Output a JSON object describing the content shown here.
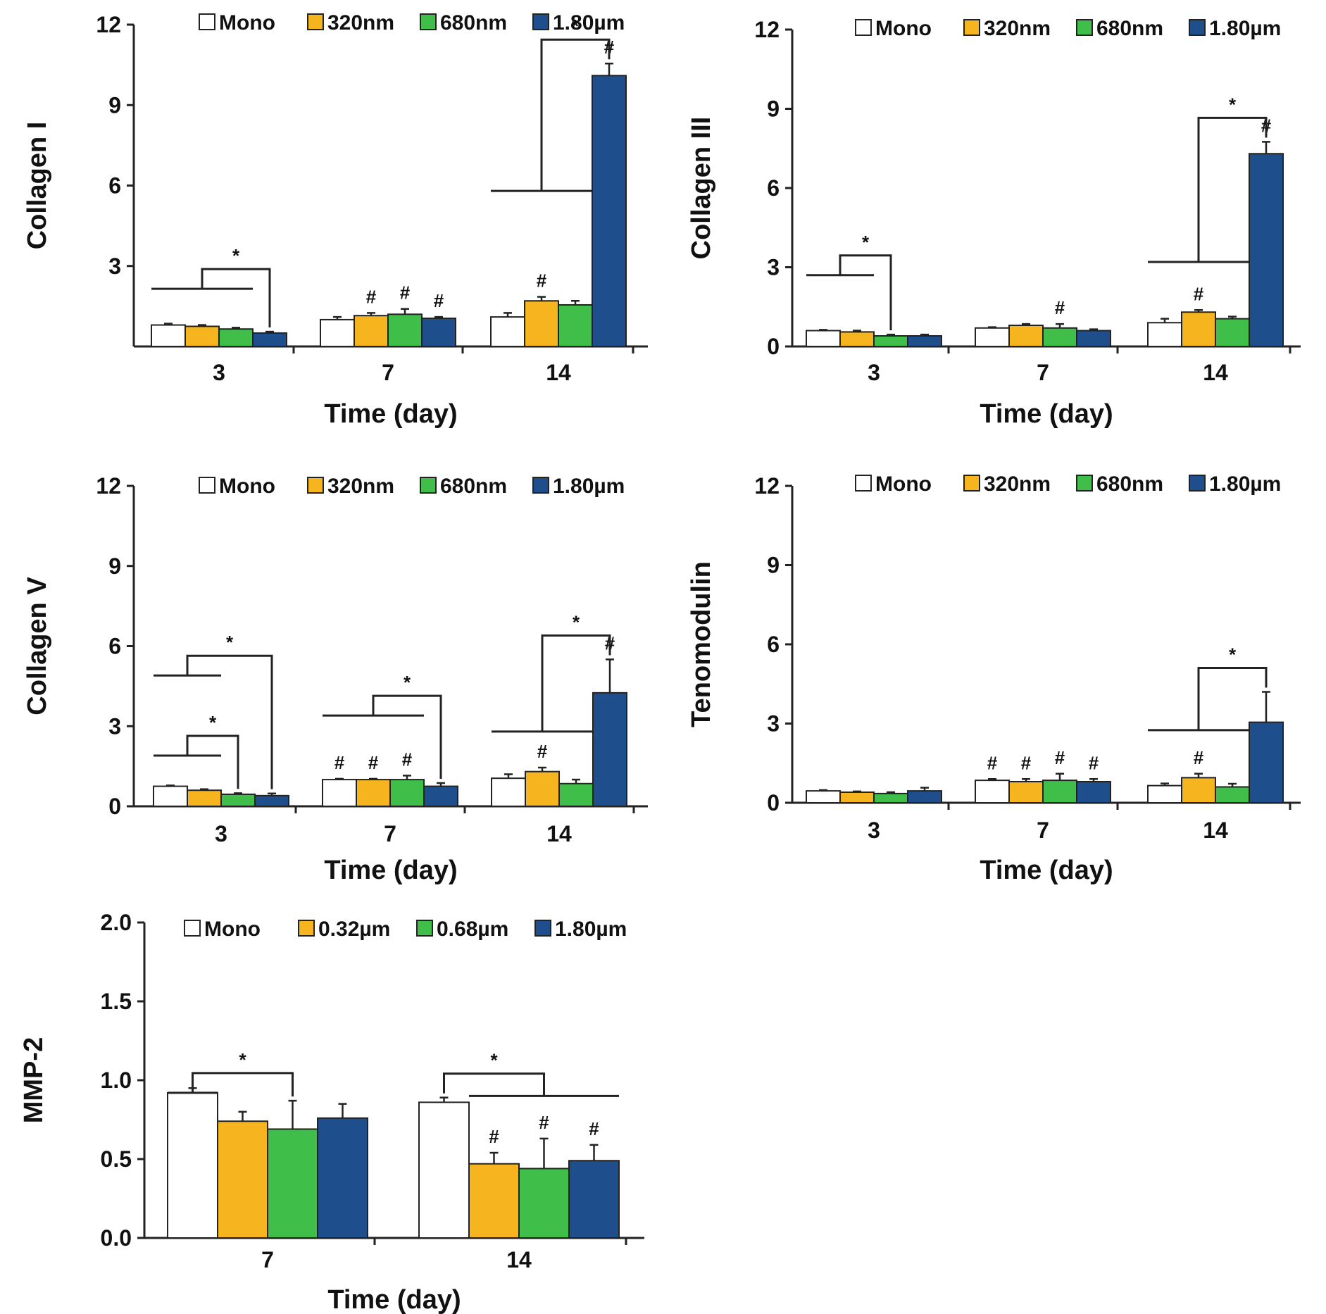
{
  "colors": {
    "Mono": "#ffffff",
    "Yellow": "#f6b51e",
    "Green": "#3fbf4a",
    "Blue": "#1f4e8c",
    "Axis": "#222222"
  },
  "chart_data": [
    {
      "id": "collagen-i",
      "type": "bar",
      "ylabel": "Collagen I",
      "xlabel": "Time (day)",
      "ylim": [
        0,
        12
      ],
      "yticks": [
        "3",
        "6",
        "9",
        "12"
      ],
      "categories": [
        "3",
        "7",
        "14"
      ],
      "series": [
        {
          "name": "Mono",
          "values": [
            0.8,
            1.0,
            1.1
          ],
          "errors": [
            0.05,
            0.1,
            0.15
          ]
        },
        {
          "name": "320nm",
          "values": [
            0.75,
            1.15,
            1.7
          ],
          "errors": [
            0.05,
            0.1,
            0.15
          ]
        },
        {
          "name": "680nm",
          "values": [
            0.65,
            1.2,
            1.55
          ],
          "errors": [
            0.05,
            0.2,
            0.15
          ]
        },
        {
          "name": "1.80µm",
          "values": [
            0.5,
            1.05,
            10.1
          ],
          "errors": [
            0.05,
            0.05,
            0.45
          ]
        }
      ],
      "hash_marks": [
        {
          "category": 1,
          "series": 1,
          "text": "#"
        },
        {
          "category": 1,
          "series": 2,
          "text": "#"
        },
        {
          "category": 1,
          "series": 3,
          "text": "#"
        },
        {
          "category": 2,
          "series": 1,
          "text": "#"
        },
        {
          "category": 2,
          "series": 3,
          "text": "#"
        }
      ],
      "significance": [
        {
          "category": 0,
          "from_series": 0,
          "to_series": 2,
          "target_series": 3,
          "level": 2.15,
          "text": "*"
        },
        {
          "category": 2,
          "from_series": 0,
          "to_series": 2,
          "target_series": 3,
          "level": 5.8,
          "text": "*"
        }
      ]
    },
    {
      "id": "collagen-iii",
      "type": "bar",
      "ylabel": "Collagen III",
      "xlabel": "Time (day)",
      "ylim": [
        0,
        12
      ],
      "yticks": [
        "0",
        "3",
        "6",
        "9",
        "12"
      ],
      "categories": [
        "3",
        "7",
        "14"
      ],
      "series": [
        {
          "name": "Mono",
          "values": [
            0.6,
            0.7,
            0.9
          ],
          "errors": [
            0.03,
            0.03,
            0.15
          ]
        },
        {
          "name": "320nm",
          "values": [
            0.55,
            0.8,
            1.3
          ],
          "errors": [
            0.05,
            0.05,
            0.08
          ]
        },
        {
          "name": "680nm",
          "values": [
            0.4,
            0.7,
            1.05
          ],
          "errors": [
            0.05,
            0.15,
            0.08
          ]
        },
        {
          "name": "1.80µm",
          "values": [
            0.4,
            0.6,
            7.3
          ],
          "errors": [
            0.05,
            0.05,
            0.45
          ]
        }
      ],
      "hash_marks": [
        {
          "category": 1,
          "series": 2,
          "text": "#"
        },
        {
          "category": 2,
          "series": 1,
          "text": "#"
        },
        {
          "category": 2,
          "series": 3,
          "text": "#"
        }
      ],
      "significance": [
        {
          "category": 0,
          "from_series": 0,
          "to_series": 1,
          "target_series": 2,
          "level": 2.7,
          "text": "*"
        },
        {
          "category": 2,
          "from_series": 0,
          "to_series": 2,
          "target_series": 3,
          "level": 3.2,
          "text": "*"
        }
      ]
    },
    {
      "id": "collagen-v",
      "type": "bar",
      "ylabel": "Collagen V",
      "xlabel": "Time (day)",
      "ylim": [
        0,
        12
      ],
      "yticks": [
        "0",
        "3",
        "6",
        "9",
        "12"
      ],
      "categories": [
        "3",
        "7",
        "14"
      ],
      "series": [
        {
          "name": "Mono",
          "values": [
            0.75,
            1.0,
            1.05
          ],
          "errors": [
            0.03,
            0.03,
            0.15
          ]
        },
        {
          "name": "320nm",
          "values": [
            0.6,
            1.0,
            1.3
          ],
          "errors": [
            0.04,
            0.03,
            0.15
          ]
        },
        {
          "name": "680nm",
          "values": [
            0.45,
            1.0,
            0.85
          ],
          "errors": [
            0.04,
            0.15,
            0.15
          ]
        },
        {
          "name": "1.80µm",
          "values": [
            0.4,
            0.75,
            4.25
          ],
          "errors": [
            0.08,
            0.12,
            1.25
          ]
        }
      ],
      "hash_marks": [
        {
          "category": 1,
          "series": 0,
          "text": "#"
        },
        {
          "category": 1,
          "series": 1,
          "text": "#"
        },
        {
          "category": 1,
          "series": 2,
          "text": "#"
        },
        {
          "category": 2,
          "series": 1,
          "text": "#"
        },
        {
          "category": 2,
          "series": 3,
          "text": "#"
        }
      ],
      "significance": [
        {
          "category": 0,
          "from_series": 0,
          "to_series": 1,
          "target_series": 2,
          "level": 1.9,
          "text": "*"
        },
        {
          "category": 0,
          "from_series": 0,
          "to_series": 1,
          "target_series": 3,
          "level": 4.9,
          "text": "*"
        },
        {
          "category": 1,
          "from_series": 0,
          "to_series": 2,
          "target_series": 3,
          "level": 3.4,
          "text": "*"
        },
        {
          "category": 2,
          "from_series": 0,
          "to_series": 2,
          "target_series": 3,
          "level": 2.8,
          "text": "*"
        }
      ]
    },
    {
      "id": "tenomodulin",
      "type": "bar",
      "ylabel": "Tenomodulin",
      "xlabel": "Time (day)",
      "ylim": [
        0,
        12
      ],
      "yticks": [
        "0",
        "3",
        "6",
        "9",
        "12"
      ],
      "categories": [
        "3",
        "7",
        "14"
      ],
      "series": [
        {
          "name": "Mono",
          "values": [
            0.45,
            0.85,
            0.65
          ],
          "errors": [
            0.03,
            0.05,
            0.08
          ]
        },
        {
          "name": "320nm",
          "values": [
            0.4,
            0.8,
            0.95
          ],
          "errors": [
            0.03,
            0.1,
            0.15
          ]
        },
        {
          "name": "680nm",
          "values": [
            0.35,
            0.85,
            0.6
          ],
          "errors": [
            0.05,
            0.25,
            0.12
          ]
        },
        {
          "name": "1.80µm",
          "values": [
            0.45,
            0.8,
            3.05
          ],
          "errors": [
            0.12,
            0.1,
            1.15
          ]
        }
      ],
      "hash_marks": [
        {
          "category": 1,
          "series": 0,
          "text": "#"
        },
        {
          "category": 1,
          "series": 1,
          "text": "#"
        },
        {
          "category": 1,
          "series": 2,
          "text": "#"
        },
        {
          "category": 1,
          "series": 3,
          "text": "#"
        },
        {
          "category": 2,
          "series": 1,
          "text": "#"
        }
      ],
      "significance": [
        {
          "category": 2,
          "from_series": 0,
          "to_series": 2,
          "target_series": 3,
          "level": 2.75,
          "text": "*"
        }
      ]
    },
    {
      "id": "mmp-2",
      "type": "bar",
      "ylabel": "MMP-2",
      "xlabel": "Time (day)",
      "ylim": [
        0,
        2
      ],
      "yticks": [
        "0.0",
        "0.5",
        "1.0",
        "1.5",
        "2.0"
      ],
      "categories": [
        "7",
        "14"
      ],
      "series": [
        {
          "name": "Mono",
          "values": [
            0.92,
            0.86
          ],
          "errors": [
            0.03,
            0.03
          ]
        },
        {
          "name": "0.32µm",
          "values": [
            0.74,
            0.47
          ],
          "errors": [
            0.06,
            0.07
          ]
        },
        {
          "name": "0.68µm",
          "values": [
            0.69,
            0.44
          ],
          "errors": [
            0.18,
            0.19
          ]
        },
        {
          "name": "1.80µm",
          "values": [
            0.76,
            0.49
          ],
          "errors": [
            0.09,
            0.1
          ]
        }
      ],
      "hash_marks": [
        {
          "category": 1,
          "series": 1,
          "text": "#"
        },
        {
          "category": 1,
          "series": 2,
          "text": "#"
        },
        {
          "category": 1,
          "series": 3,
          "text": "#"
        }
      ],
      "significance": [
        {
          "category": 0,
          "from_series": 0,
          "to_series": 0,
          "target_series": 2,
          "level": 0.92,
          "text": "*"
        },
        {
          "category": 1,
          "from_series": 1,
          "to_series": 3,
          "target_series": 0,
          "level": 0.9,
          "text": "*"
        }
      ]
    }
  ]
}
